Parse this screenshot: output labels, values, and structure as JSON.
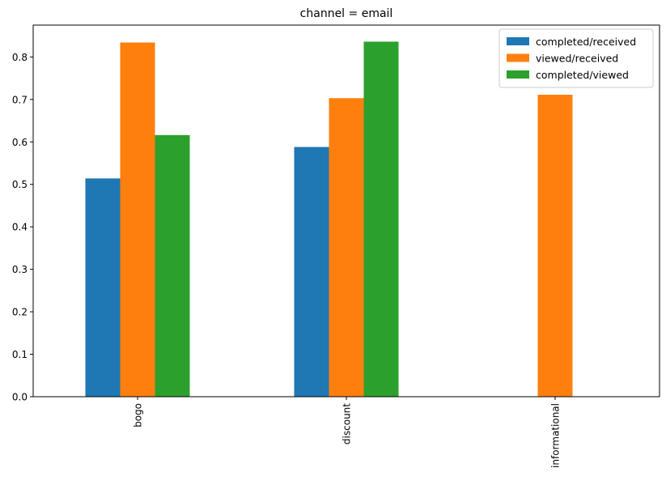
{
  "chart_data": {
    "type": "bar",
    "title": "channel = email",
    "xlabel": "",
    "ylabel": "",
    "categories": [
      "bogo",
      "discount",
      "informational"
    ],
    "series": [
      {
        "name": "completed/received",
        "color": "#1f77b4",
        "values": [
          0.514,
          0.588,
          null
        ]
      },
      {
        "name": "viewed/received",
        "color": "#ff7f0e",
        "values": [
          0.834,
          0.703,
          0.711
        ]
      },
      {
        "name": "completed/viewed",
        "color": "#2ca02c",
        "values": [
          0.616,
          0.836,
          null
        ]
      }
    ],
    "ylim": [
      0,
      0.875
    ],
    "yticks": [
      "0.0",
      "0.1",
      "0.2",
      "0.3",
      "0.4",
      "0.5",
      "0.6",
      "0.7",
      "0.8"
    ],
    "grid": false,
    "legend": "top-right"
  }
}
